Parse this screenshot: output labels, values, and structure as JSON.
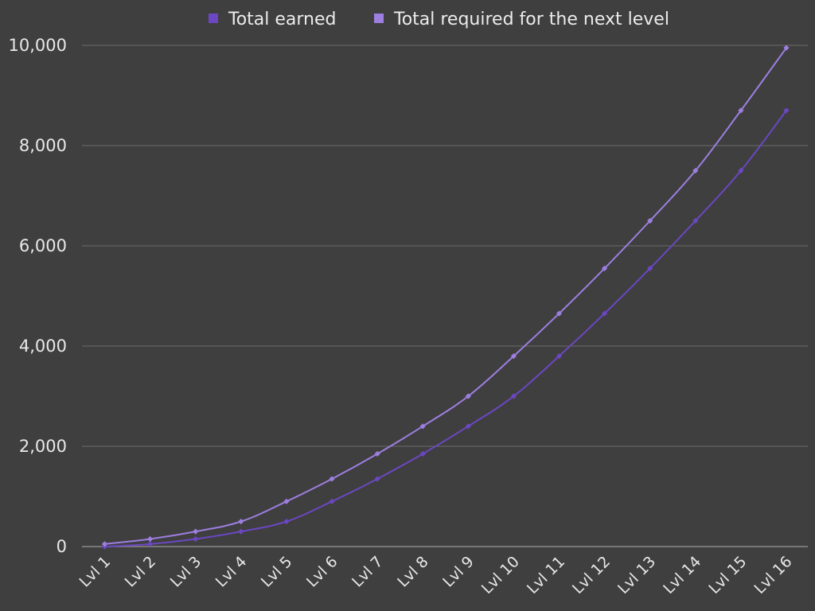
{
  "chart_data": {
    "type": "line",
    "title": "",
    "xlabel": "",
    "ylabel": "",
    "categories": [
      "Lvl 1",
      "Lvl 2",
      "Lvl 3",
      "Lvl 4",
      "Lvl 5",
      "Lvl 6",
      "Lvl 7",
      "Lvl 8",
      "Lvl 9",
      "Lvl 10",
      "Lvl 11",
      "Lvl 12",
      "Lvl 13",
      "Lvl 14",
      "Lvl 15",
      "Lvl 16"
    ],
    "ylim": [
      0,
      10000
    ],
    "yticks": [
      0,
      2000,
      4000,
      6000,
      8000,
      10000
    ],
    "ytick_labels": [
      "0",
      "2,000",
      "4,000",
      "6,000",
      "8,000",
      "10,000"
    ],
    "grid": true,
    "legend_position": "top",
    "series": [
      {
        "name": "Total earned",
        "color": "#6b47c2",
        "values": [
          0,
          50,
          150,
          300,
          500,
          900,
          1350,
          1850,
          2400,
          3000,
          3800,
          4650,
          5550,
          6500,
          7500,
          8700
        ]
      },
      {
        "name": "Total required for the next level",
        "color": "#9d7fe0",
        "values": [
          50,
          150,
          300,
          500,
          900,
          1350,
          1850,
          2400,
          3000,
          3800,
          4650,
          5550,
          6500,
          7500,
          8700,
          9950
        ]
      }
    ]
  }
}
